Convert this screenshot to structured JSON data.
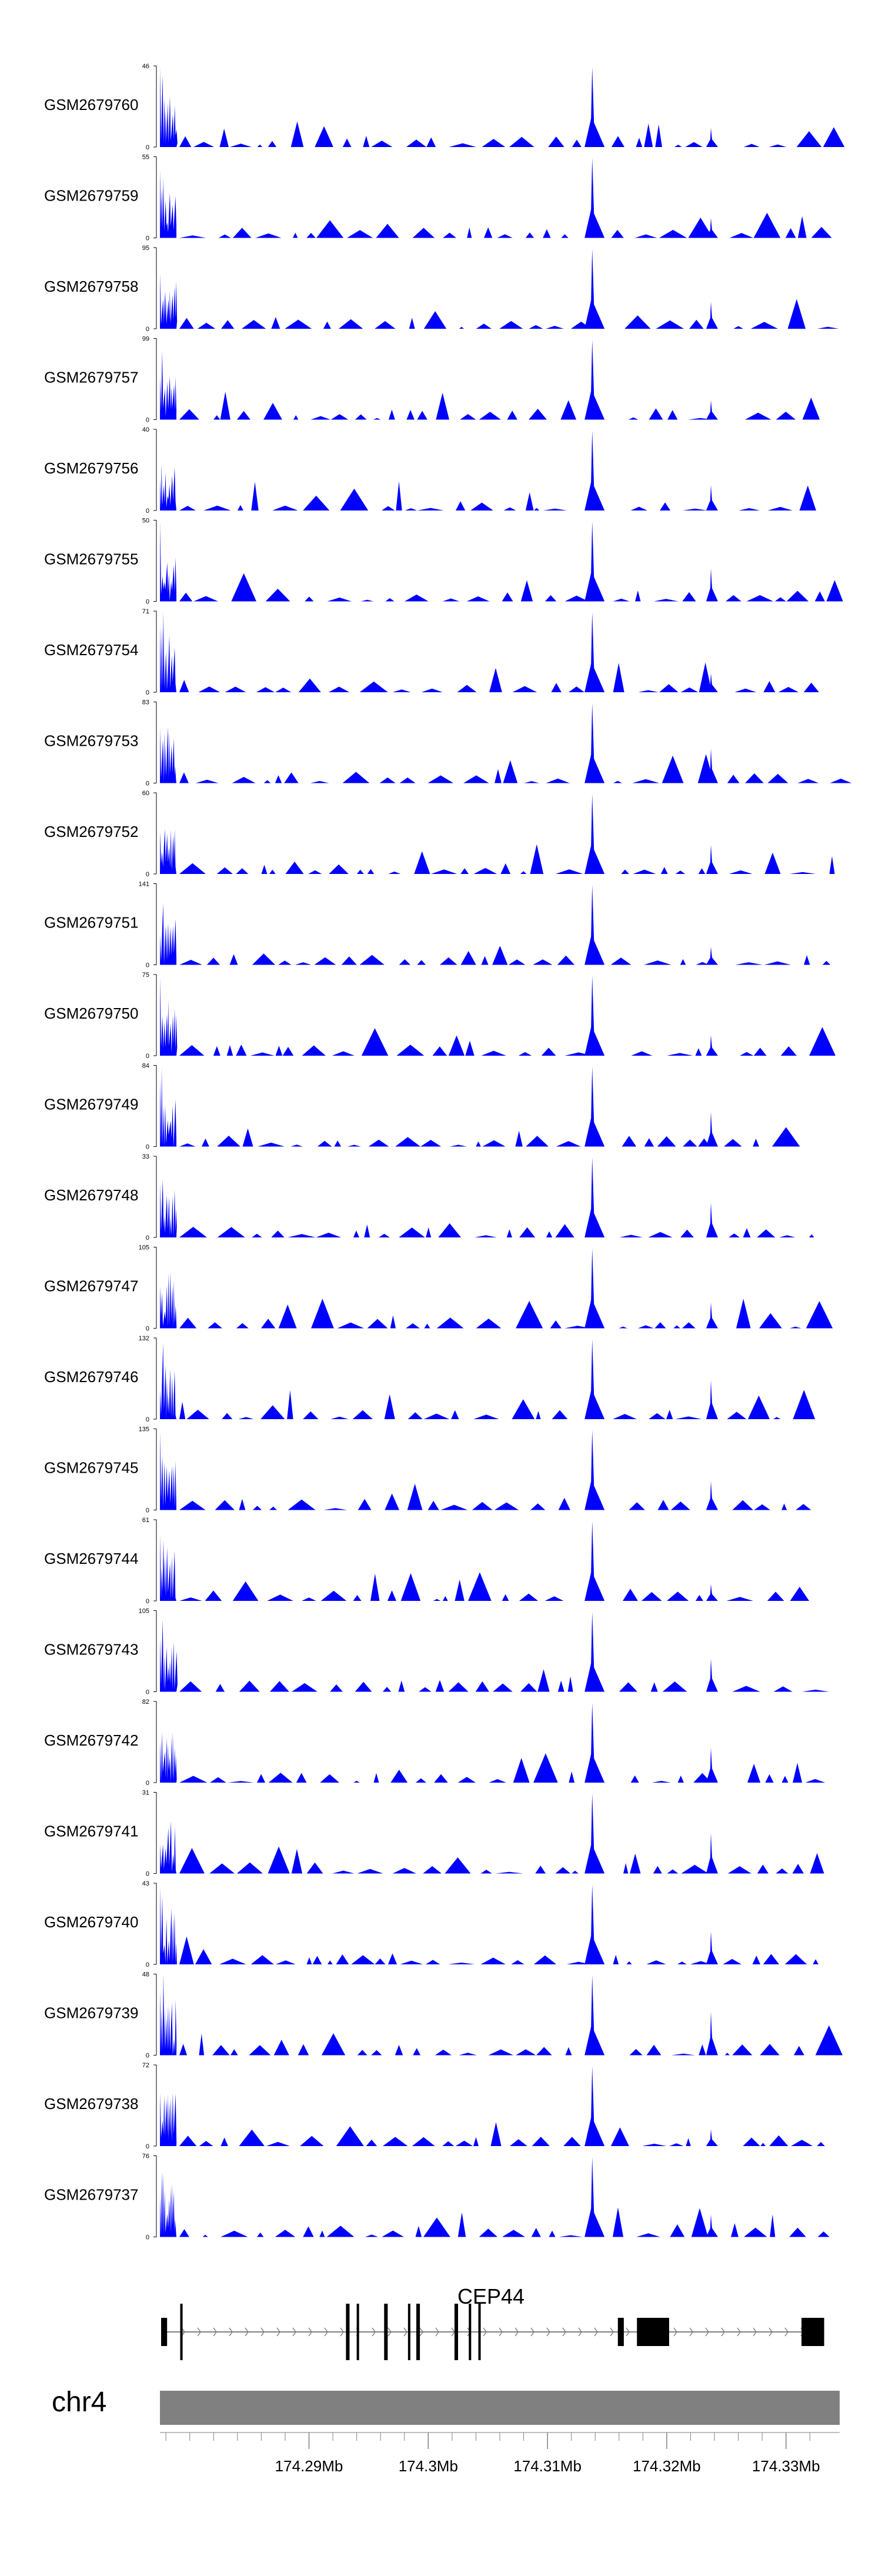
{
  "chart_data": {
    "type": "area",
    "title": "",
    "xlabel": "",
    "ylabel": "",
    "color": "#0000ff",
    "xlim": [
      174.2775,
      174.3345
    ],
    "x_unit": "Mb",
    "peak_positions_mb": [
      174.3138,
      174.3237
    ],
    "tracks": [
      {
        "name": "GSM2679760",
        "ymax": "46",
        "ymin": "0"
      },
      {
        "name": "GSM2679759",
        "ymax": "55",
        "ymin": "0"
      },
      {
        "name": "GSM2679758",
        "ymax": "95",
        "ymin": "0"
      },
      {
        "name": "GSM2679757",
        "ymax": "99",
        "ymin": "0"
      },
      {
        "name": "GSM2679756",
        "ymax": "40",
        "ymin": "0"
      },
      {
        "name": "GSM2679755",
        "ymax": "50",
        "ymin": "0"
      },
      {
        "name": "GSM2679754",
        "ymax": "71",
        "ymin": "0"
      },
      {
        "name": "GSM2679753",
        "ymax": "83",
        "ymin": "0"
      },
      {
        "name": "GSM2679752",
        "ymax": "60",
        "ymin": "0"
      },
      {
        "name": "GSM2679751",
        "ymax": "141",
        "ymin": "0"
      },
      {
        "name": "GSM2679750",
        "ymax": "75",
        "ymin": "0"
      },
      {
        "name": "GSM2679749",
        "ymax": "84",
        "ymin": "0"
      },
      {
        "name": "GSM2679748",
        "ymax": "33",
        "ymin": "0"
      },
      {
        "name": "GSM2679747",
        "ymax": "105",
        "ymin": "0"
      },
      {
        "name": "GSM2679746",
        "ymax": "132",
        "ymin": "0"
      },
      {
        "name": "GSM2679745",
        "ymax": "135",
        "ymin": "0"
      },
      {
        "name": "GSM2679744",
        "ymax": "61",
        "ymin": "0"
      },
      {
        "name": "GSM2679743",
        "ymax": "105",
        "ymin": "0"
      },
      {
        "name": "GSM2679742",
        "ymax": "82",
        "ymin": "0"
      },
      {
        "name": "GSM2679741",
        "ymax": "31",
        "ymin": "0"
      },
      {
        "name": "GSM2679740",
        "ymax": "43",
        "ymin": "0"
      },
      {
        "name": "GSM2679739",
        "ymax": "48",
        "ymin": "0"
      },
      {
        "name": "GSM2679738",
        "ymax": "72",
        "ymin": "0"
      },
      {
        "name": "GSM2679737",
        "ymax": "76",
        "ymin": "0"
      }
    ],
    "gene": {
      "name": "CEP44",
      "start_mb": 174.2776,
      "end_mb": 174.3332,
      "exons_mb": [
        [
          174.2776,
          174.2781
        ],
        [
          174.2792,
          174.2794
        ],
        [
          174.2931,
          174.2934
        ],
        [
          174.294,
          174.2942
        ],
        [
          174.2963,
          174.2966
        ],
        [
          174.2983,
          174.2985
        ],
        [
          174.299,
          174.2993
        ],
        [
          174.3022,
          174.3025
        ],
        [
          174.3034,
          174.3036
        ],
        [
          174.3042,
          174.3044
        ],
        [
          174.3159,
          174.3164
        ],
        [
          174.3175,
          174.3202
        ],
        [
          174.3313,
          174.3332
        ]
      ]
    },
    "chromosome": "chr4",
    "ticks_mb": [
      174.29,
      174.3,
      174.31,
      174.32,
      174.33
    ],
    "tick_labels": [
      "174.29Mb",
      "174.3Mb",
      "174.31Mb",
      "174.32Mb",
      "174.33Mb"
    ]
  }
}
